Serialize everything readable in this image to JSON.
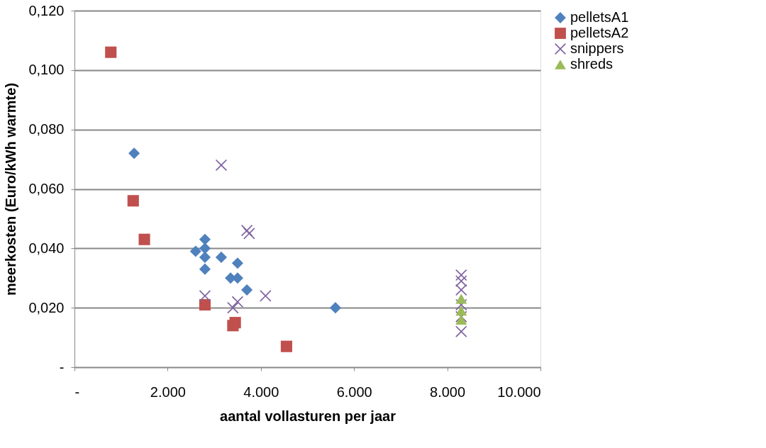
{
  "chart_data": {
    "type": "scatter",
    "xlabel": "aantal vollasturen per jaar",
    "ylabel": "meerkosten (Euro/kWh warmte)",
    "xlim": [
      0,
      10000
    ],
    "xticks": [
      {
        "value": 0,
        "label": "-"
      },
      {
        "value": 2000,
        "label": "2.000"
      },
      {
        "value": 4000,
        "label": "4.000"
      },
      {
        "value": 6000,
        "label": "6.000"
      },
      {
        "value": 8000,
        "label": "8.000"
      },
      {
        "value": 10000,
        "label": "10.000"
      }
    ],
    "ylim": [
      0,
      0.12
    ],
    "yticks": [
      {
        "value": 0,
        "label": "-"
      },
      {
        "value": 0.02,
        "label": "0,020"
      },
      {
        "value": 0.04,
        "label": "0,040"
      },
      {
        "value": 0.06,
        "label": "0,060"
      },
      {
        "value": 0.08,
        "label": "0,080"
      },
      {
        "value": 0.1,
        "label": "0,100"
      },
      {
        "value": 0.12,
        "label": "0,120"
      }
    ],
    "grid": "y",
    "legend": "right",
    "series": [
      {
        "name": "pelletsA1",
        "color": "#4f81bd",
        "marker": "diamond",
        "x": [
          1280,
          2600,
          2800,
          2800,
          2800,
          2800,
          3150,
          3500,
          3350,
          3500,
          3700,
          5600
        ],
        "values": [
          0.072,
          0.039,
          0.043,
          0.04,
          0.037,
          0.033,
          0.037,
          0.035,
          0.03,
          0.03,
          0.026,
          0.02
        ]
      },
      {
        "name": "pelletsA2",
        "color": "#c0504d",
        "marker": "square",
        "x": [
          780,
          1260,
          1500,
          2800,
          3400,
          3450,
          4550
        ],
        "values": [
          0.106,
          0.056,
          0.043,
          0.021,
          0.014,
          0.015,
          0.007
        ]
      },
      {
        "name": "snippers",
        "color": "#8064a2",
        "marker": "cross",
        "x": [
          3150,
          3700,
          3750,
          2800,
          3500,
          3400,
          4100,
          8300,
          8300,
          8300,
          8300,
          8300,
          8300
        ],
        "values": [
          0.068,
          0.046,
          0.045,
          0.024,
          0.022,
          0.02,
          0.024,
          0.031,
          0.029,
          0.026,
          0.021,
          0.017,
          0.012
        ]
      },
      {
        "name": "shreds",
        "color": "#9bbb59",
        "marker": "triangle",
        "x": [
          8300,
          8300,
          8300
        ],
        "values": [
          0.023,
          0.019,
          0.016
        ]
      }
    ]
  }
}
